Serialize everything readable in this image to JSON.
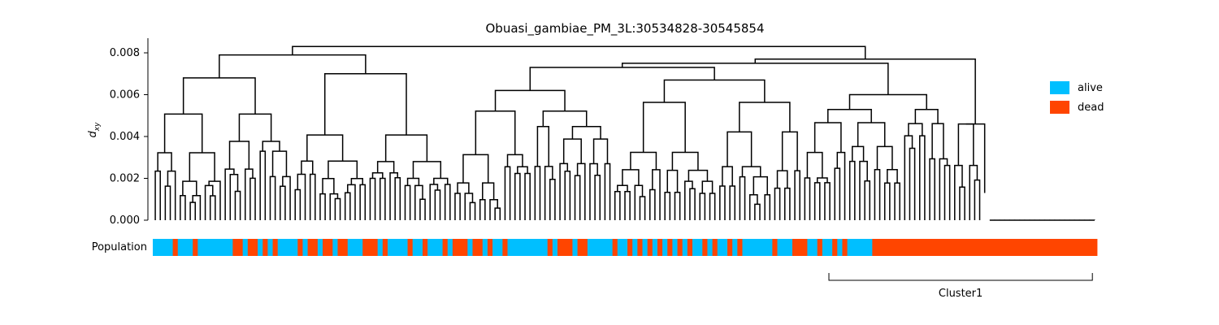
{
  "chart_data": {
    "type": "dendrogram",
    "title": "Obuasi_gambiae_PM_3L:30534828-30545854",
    "ylabel": "d",
    "ylabel_subscript": "xy",
    "ylim": [
      0,
      0.0087
    ],
    "yticks": [
      0.0,
      0.002,
      0.004,
      0.006,
      0.008
    ],
    "ytick_labels": [
      "0.000",
      "0.002",
      "0.004",
      "0.006",
      "0.008"
    ],
    "grid": false,
    "legend": {
      "placement": "right",
      "entries": [
        {
          "label": "alive",
          "color": "#00bfff"
        },
        {
          "label": "dead",
          "color": "#ff4500"
        }
      ]
    },
    "population_track": {
      "label": "Population",
      "segments": [
        [
          "alive",
          4
        ],
        [
          "dead",
          1
        ],
        [
          "alive",
          3
        ],
        [
          "dead",
          1
        ],
        [
          "alive",
          7
        ],
        [
          "dead",
          2
        ],
        [
          "alive",
          1
        ],
        [
          "dead",
          2
        ],
        [
          "alive",
          1
        ],
        [
          "dead",
          1
        ],
        [
          "alive",
          1
        ],
        [
          "dead",
          1
        ],
        [
          "alive",
          4
        ],
        [
          "dead",
          1
        ],
        [
          "alive",
          1
        ],
        [
          "dead",
          2
        ],
        [
          "alive",
          1
        ],
        [
          "dead",
          2
        ],
        [
          "alive",
          1
        ],
        [
          "dead",
          2
        ],
        [
          "alive",
          3
        ],
        [
          "dead",
          3
        ],
        [
          "alive",
          1
        ],
        [
          "dead",
          1
        ],
        [
          "alive",
          4
        ],
        [
          "dead",
          1
        ],
        [
          "alive",
          2
        ],
        [
          "dead",
          1
        ],
        [
          "alive",
          3
        ],
        [
          "dead",
          1
        ],
        [
          "alive",
          1
        ],
        [
          "dead",
          3
        ],
        [
          "alive",
          1
        ],
        [
          "dead",
          2
        ],
        [
          "alive",
          1
        ],
        [
          "dead",
          1
        ],
        [
          "alive",
          2
        ],
        [
          "dead",
          1
        ],
        [
          "alive",
          8
        ],
        [
          "dead",
          1
        ],
        [
          "alive",
          1
        ],
        [
          "dead",
          3
        ],
        [
          "alive",
          1
        ],
        [
          "dead",
          2
        ],
        [
          "alive",
          5
        ],
        [
          "dead",
          1
        ],
        [
          "alive",
          2
        ],
        [
          "dead",
          1
        ],
        [
          "alive",
          1
        ],
        [
          "dead",
          1
        ],
        [
          "alive",
          1
        ],
        [
          "dead",
          1
        ],
        [
          "alive",
          1
        ],
        [
          "dead",
          1
        ],
        [
          "alive",
          1
        ],
        [
          "dead",
          1
        ],
        [
          "alive",
          1
        ],
        [
          "dead",
          1
        ],
        [
          "alive",
          1
        ],
        [
          "dead",
          1
        ],
        [
          "alive",
          2
        ],
        [
          "dead",
          1
        ],
        [
          "alive",
          1
        ],
        [
          "dead",
          1
        ],
        [
          "alive",
          2
        ],
        [
          "dead",
          1
        ],
        [
          "alive",
          1
        ],
        [
          "dead",
          1
        ],
        [
          "alive",
          6
        ],
        [
          "dead",
          1
        ],
        [
          "alive",
          3
        ],
        [
          "dead",
          3
        ],
        [
          "alive",
          2
        ],
        [
          "dead",
          1
        ],
        [
          "alive",
          2
        ],
        [
          "dead",
          1
        ],
        [
          "alive",
          1
        ],
        [
          "dead",
          1
        ],
        [
          "alive",
          5
        ],
        [
          "dead",
          45
        ]
      ]
    },
    "annotations": [
      {
        "type": "bracket",
        "label": "Cluster1",
        "from_fraction": 0.716,
        "to_fraction": 0.995
      }
    ]
  }
}
